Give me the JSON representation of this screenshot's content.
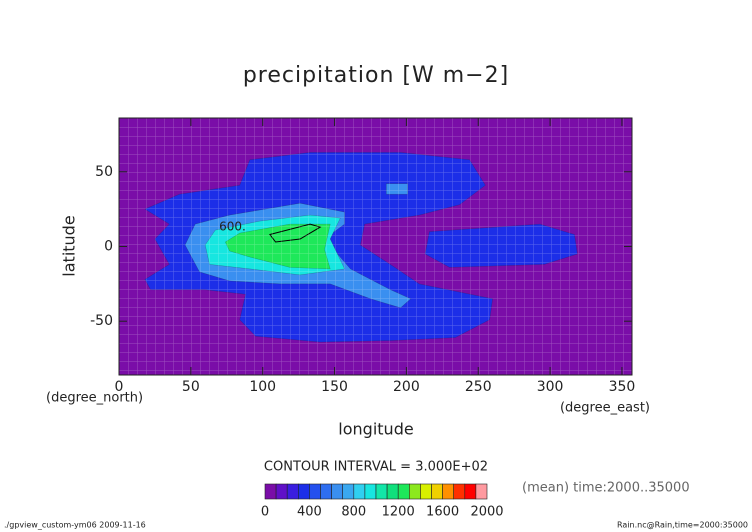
{
  "chart_data": {
    "type": "contour",
    "title": "precipitation [W m−2]",
    "xlabel": "longitude",
    "ylabel": "latitude",
    "xunit": "(degree_east)",
    "yunit": "(degree_north)",
    "xlim": [
      0,
      357
    ],
    "ylim": [
      -86,
      86
    ],
    "xticks": [
      0,
      50,
      100,
      150,
      200,
      250,
      300,
      350
    ],
    "yticks": [
      -50,
      0,
      50
    ],
    "grid": true,
    "contour_interval": "CONTOUR INTERVAL = 3.000E+02",
    "contour_label": "600.",
    "mean_note": "(mean) time:2000..35000",
    "footer_left": "./gpview_custom-ym06  2009-11-16",
    "footer_right": "Rain.nc@Rain,time=2000:35000",
    "regions": [
      {
        "level": 300,
        "filled": true,
        "x": [
          18,
          42,
          84,
          91,
          133,
          196,
          244,
          255,
          237,
          209,
          171,
          168,
          192,
          209,
          260,
          258,
          234,
          189,
          140,
          95,
          84,
          88,
          60,
          22,
          18,
          35,
          25,
          35
        ],
        "y": [
          25,
          35,
          41,
          58,
          63,
          63,
          58,
          41,
          28,
          21,
          15,
          1,
          -14,
          -25,
          -35,
          -49,
          -61,
          -63,
          -64,
          -60,
          -49,
          -32,
          -29,
          -29,
          -22,
          -12,
          5,
          15
        ]
      },
      {
        "level": 300,
        "filled": true,
        "x": [
          216,
          293,
          317,
          319,
          296,
          230,
          213
        ],
        "y": [
          10,
          15,
          8,
          -5,
          -12,
          -14,
          -5
        ]
      },
      {
        "level": 600,
        "filled": true,
        "x": [
          46,
          53,
          77,
          126,
          157,
          157,
          143,
          161,
          189,
          203,
          196,
          175,
          147,
          112,
          77,
          56
        ],
        "y": [
          1,
          15,
          21,
          29,
          23,
          15,
          5,
          -15,
          -29,
          -35,
          -41,
          -35,
          -25,
          -25,
          -23,
          -17
        ]
      },
      {
        "level": 600,
        "filled": true,
        "x": [
          186,
          201,
          201,
          186
        ],
        "y": [
          42,
          42,
          35,
          35
        ]
      },
      {
        "level": 900,
        "filled": true,
        "x": [
          60,
          67,
          98,
          133,
          154,
          147,
          157,
          126,
          91,
          63
        ],
        "y": [
          1,
          11,
          17,
          21,
          19,
          5,
          -15,
          -19,
          -15,
          -12
        ]
      },
      {
        "level": 1200,
        "filled": true,
        "x": [
          74,
          84,
          119,
          147,
          143,
          147,
          119,
          91,
          77
        ],
        "y": [
          3,
          9,
          15,
          15,
          -2,
          -15,
          -14,
          -7,
          -3
        ]
      },
      {
        "level": 1500,
        "filled": false,
        "x": [
          105,
          133,
          140,
          126,
          109
        ],
        "y": [
          8,
          15,
          13,
          5,
          3
        ]
      }
    ],
    "colorbar": {
      "levels": [
        0,
        100,
        200,
        300,
        400,
        500,
        600,
        700,
        800,
        900,
        1000,
        1100,
        1200,
        1300,
        1400,
        1500,
        1600,
        1700,
        1800,
        1900,
        2000
      ],
      "colors": [
        "#7a0da8",
        "#6010c8",
        "#3a1ee0",
        "#1c2ee8",
        "#2450ee",
        "#2e6ef0",
        "#3a8ff0",
        "#3aa8f0",
        "#30d0f0",
        "#17e6e0",
        "#12e6a8",
        "#10e07c",
        "#1ee85a",
        "#8ce81e",
        "#d8f000",
        "#f0d000",
        "#ff9000",
        "#ff3000",
        "#ff0000",
        "#ff9aa0"
      ],
      "ticks": [
        0,
        400,
        800,
        1200,
        1600,
        2000
      ]
    }
  }
}
